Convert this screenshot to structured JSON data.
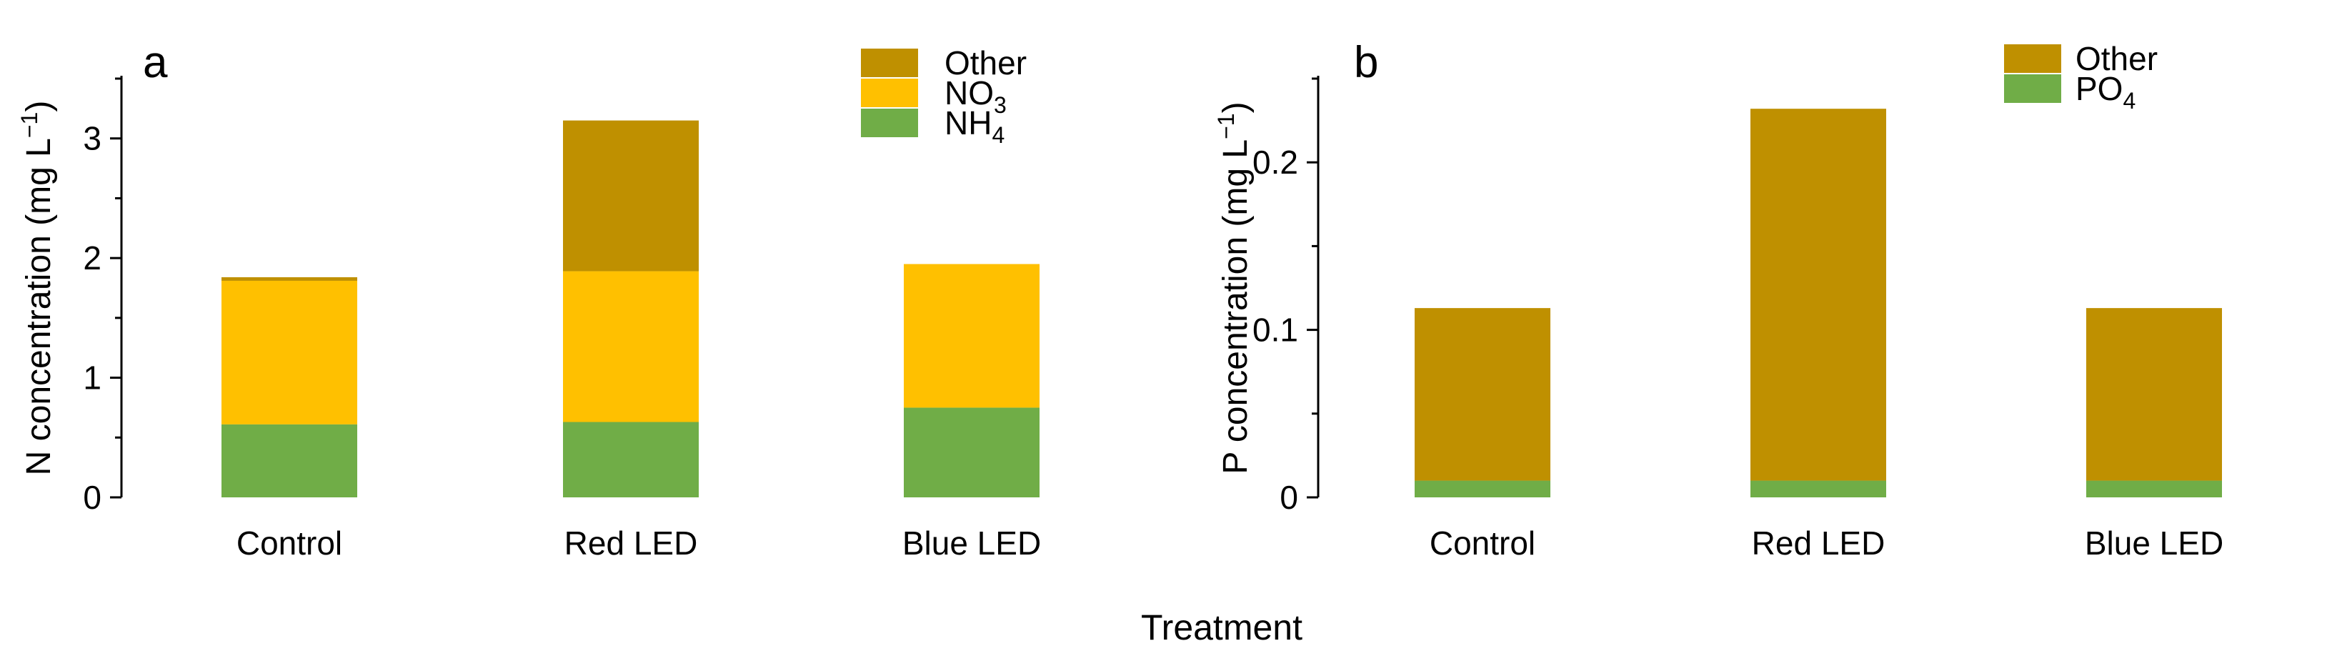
{
  "chart_data": [
    {
      "type": "bar",
      "stacked": true,
      "panel_label": "a",
      "categories": [
        "Control",
        "Red LED",
        "Blue LED"
      ],
      "series": [
        {
          "name": "NH4",
          "label_main": "NH",
          "label_sub": "4",
          "color": "#70AD47",
          "values": [
            0.61,
            0.63,
            0.75
          ]
        },
        {
          "name": "NO3",
          "label_main": "NO",
          "label_sub": "3",
          "color": "#FFC000",
          "values": [
            1.2,
            1.26,
            1.2
          ]
        },
        {
          "name": "Other",
          "label_main": "Other",
          "label_sub": "",
          "color": "#BF9000",
          "values": [
            0.03,
            1.26,
            0.0
          ]
        }
      ],
      "legend_order": [
        "Other",
        "NO3",
        "NH4"
      ],
      "ylabel_main": "N concentration (mg L",
      "ylabel_sup": "−1",
      "ylabel_end": ")",
      "ylim": [
        0,
        3.5
      ],
      "yticks": [
        0,
        1,
        2,
        3
      ],
      "ytick_labels": [
        "0",
        "1",
        "2",
        "3"
      ],
      "yminor": [
        0.5,
        1.5,
        2.5,
        3.5
      ],
      "legend_position": "top-right"
    },
    {
      "type": "bar",
      "stacked": true,
      "panel_label": "b",
      "categories": [
        "Control",
        "Red LED",
        "Blue LED"
      ],
      "series": [
        {
          "name": "PO4",
          "label_main": "PO",
          "label_sub": "4",
          "color": "#70AD47",
          "values": [
            0.01,
            0.01,
            0.01
          ]
        },
        {
          "name": "Other",
          "label_main": "Other",
          "label_sub": "",
          "color": "#BF9000",
          "values": [
            0.103,
            0.222,
            0.103
          ]
        }
      ],
      "legend_order": [
        "Other",
        "PO4"
      ],
      "ylabel_main": "P concentration (mg L",
      "ylabel_sup": "−1",
      "ylabel_end": ")",
      "ylim": [
        0,
        0.25
      ],
      "yticks": [
        0,
        0.1,
        0.2
      ],
      "ytick_labels": [
        "0",
        "0.1",
        "0.2"
      ],
      "yminor": [
        0.05,
        0.15,
        0.25
      ],
      "legend_position": "top-right"
    }
  ],
  "shared_xlabel": "Treatment"
}
